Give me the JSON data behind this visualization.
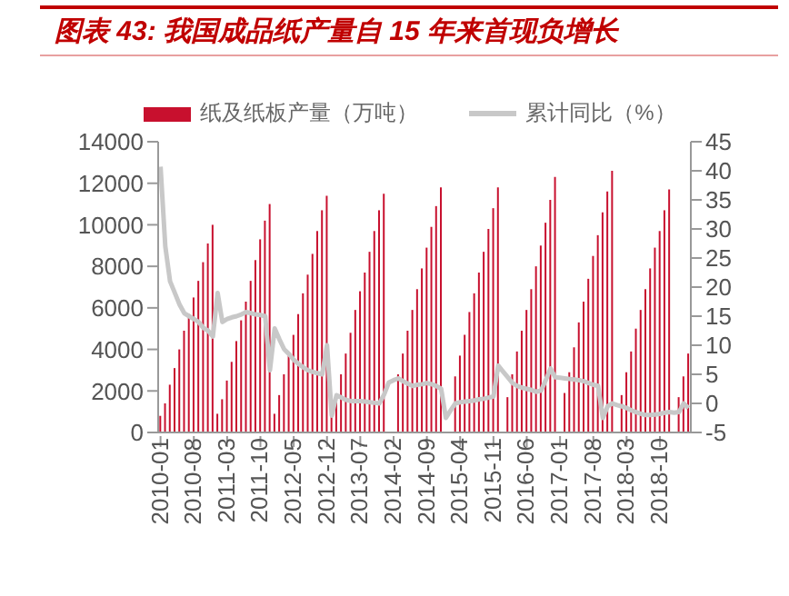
{
  "chart_data": {
    "type": "bar",
    "title": "图表 43: 我国成品纸产量自 15 年来首现负增长",
    "categories": [
      "2010-01",
      null,
      null,
      null,
      null,
      null,
      null,
      "2010-08",
      null,
      null,
      null,
      null,
      null,
      null,
      "2011-03",
      null,
      null,
      null,
      null,
      null,
      null,
      "2011-10",
      null,
      null,
      null,
      null,
      null,
      null,
      "2012-05",
      null,
      null,
      null,
      null,
      null,
      null,
      "2012-12",
      null,
      null,
      null,
      null,
      null,
      null,
      "2013-07",
      null,
      null,
      null,
      null,
      null,
      null,
      "2014-02",
      null,
      null,
      null,
      null,
      null,
      null,
      "2014-09",
      null,
      null,
      null,
      null,
      null,
      null,
      "2015-04",
      null,
      null,
      null,
      null,
      null,
      null,
      "2015-11",
      null,
      null,
      null,
      null,
      null,
      null,
      "2016-06",
      null,
      null,
      null,
      null,
      null,
      null,
      "2017-01",
      null,
      null,
      null,
      null,
      null,
      null,
      "2017-08",
      null,
      null,
      null,
      null,
      null,
      null,
      "2018-03",
      null,
      null,
      null,
      null,
      null,
      null,
      "2018-10",
      null,
      null,
      null,
      null,
      null,
      null
    ],
    "series": [
      {
        "name": "纸及纸板产量（万吨）",
        "color": "#c8102e",
        "values": [
          800,
          1400,
          2300,
          3100,
          4000,
          4900,
          5700,
          6500,
          7300,
          8200,
          9100,
          10000,
          900,
          1600,
          2500,
          3400,
          4400,
          5400,
          6300,
          7300,
          8300,
          9300,
          10200,
          11000,
          900,
          1800,
          2800,
          3700,
          4700,
          5700,
          6700,
          7600,
          8600,
          9700,
          10700,
          11400,
          900,
          1700,
          2800,
          3800,
          4800,
          5900,
          6800,
          7700,
          8700,
          9700,
          10700,
          11500,
          null,
          null,
          2800,
          3800,
          4900,
          5900,
          6900,
          7900,
          8900,
          9900,
          10900,
          11800,
          null,
          null,
          2700,
          3700,
          4700,
          5800,
          6700,
          7700,
          8700,
          9800,
          10800,
          11800,
          null,
          1700,
          2800,
          3900,
          4900,
          5900,
          6900,
          8000,
          9000,
          10100,
          11200,
          12300,
          null,
          1900,
          2900,
          4100,
          5300,
          6300,
          7400,
          8500,
          9500,
          10600,
          11600,
          12600,
          null,
          1800,
          2900,
          3900,
          5000,
          5900,
          6900,
          7900,
          8900,
          9700,
          10700,
          11700,
          null,
          1700,
          2700,
          3800
        ]
      },
      {
        "name": "累计同比（%）",
        "type": "line",
        "axis": "y2",
        "color": "#c8c8c8",
        "values": [
          40.7,
          27,
          21,
          19,
          17,
          15.5,
          15,
          14.5,
          14,
          13,
          12.5,
          11.5,
          19,
          14,
          14.5,
          14.8,
          15,
          15.3,
          15.7,
          15.5,
          15.3,
          15.2,
          15,
          5.7,
          12.9,
          11,
          9.3,
          8.5,
          7.5,
          6.8,
          6.2,
          5.7,
          5.4,
          5.2,
          5,
          10,
          -2.1,
          1.4,
          1,
          0.6,
          0.4,
          0.4,
          0.4,
          0.3,
          0.2,
          0.1,
          0,
          1.5,
          3.6,
          4,
          4.3,
          3.8,
          3.4,
          3,
          3.2,
          3.3,
          3.5,
          3.3,
          3,
          2.5,
          -2.5,
          -1.2,
          0,
          0.2,
          0.3,
          0.4,
          0.5,
          0.7,
          0.8,
          1,
          1.2,
          6.5,
          5.5,
          4.5,
          3.5,
          3,
          2.7,
          2.5,
          2.3,
          2,
          2.2,
          4,
          6,
          4.5,
          4.4,
          4.3,
          4.2,
          4.1,
          4,
          3.8,
          3.5,
          3.2,
          3,
          -2.5,
          -0.5,
          0,
          -0.3,
          -0.5,
          -0.8,
          -1.2,
          -1.5,
          -1.8,
          -2,
          -2,
          -1.9,
          -1.8,
          -1.6,
          -1.5,
          -1.6,
          -1.5,
          0,
          -0.8
        ]
      }
    ],
    "ylim": [
      0,
      14000
    ],
    "yticks": [
      0,
      2000,
      4000,
      6000,
      8000,
      10000,
      12000,
      14000
    ],
    "y2lim": [
      -5,
      45
    ],
    "y2ticks": [
      -5,
      0,
      5,
      10,
      15,
      20,
      25,
      30,
      35,
      40,
      45
    ],
    "legend": "top",
    "grid": false,
    "marker": "none"
  }
}
